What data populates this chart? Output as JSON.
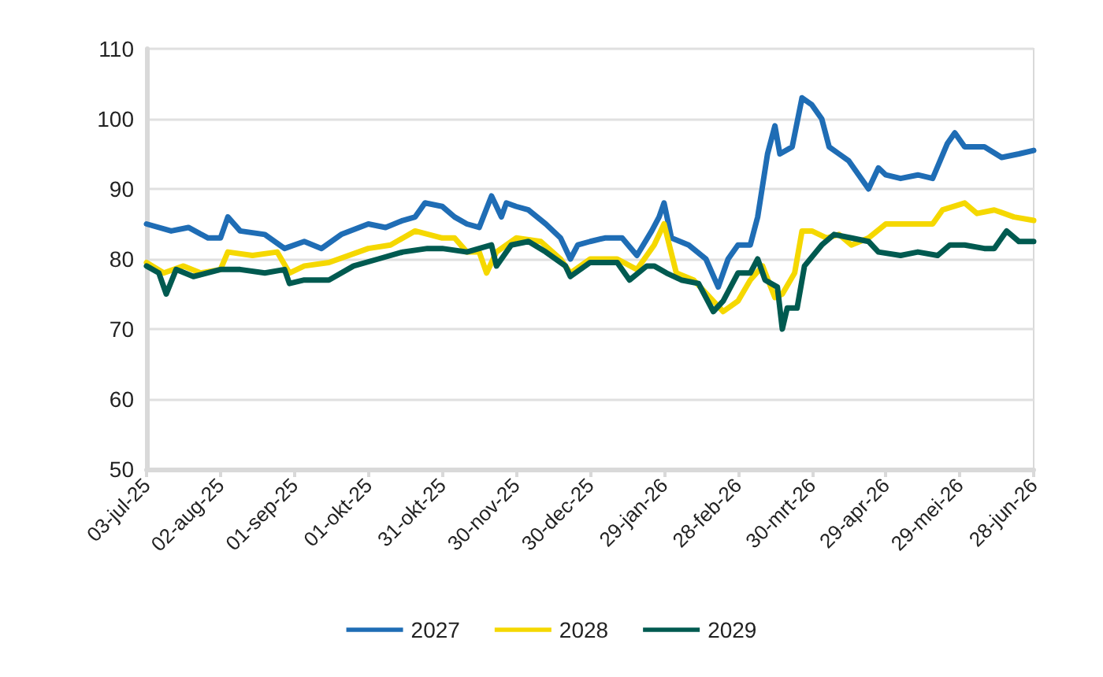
{
  "chart_data": {
    "type": "line",
    "xlim": [
      "2025-07-03",
      "2026-06-28"
    ],
    "xticks": [
      {
        "value": "2025-07-03",
        "label": "03-jul-25"
      },
      {
        "value": "2025-08-02",
        "label": "02-aug-25"
      },
      {
        "value": "2025-09-01",
        "label": "01-sep-25"
      },
      {
        "value": "2025-10-01",
        "label": "01-okt-25"
      },
      {
        "value": "2025-10-31",
        "label": "31-okt-25"
      },
      {
        "value": "2025-11-30",
        "label": "30-nov-25"
      },
      {
        "value": "2025-12-30",
        "label": "30-dec-25"
      },
      {
        "value": "2026-01-29",
        "label": "29-jan-26"
      },
      {
        "value": "2026-02-28",
        "label": "28-feb-26"
      },
      {
        "value": "2026-03-30",
        "label": "30-mrt-26"
      },
      {
        "value": "2026-04-29",
        "label": "29-apr-26"
      },
      {
        "value": "2026-05-29",
        "label": "29-mei-26"
      },
      {
        "value": "2026-06-28",
        "label": "28-jun-26"
      }
    ],
    "ylim": [
      50,
      110
    ],
    "yticks": [
      50,
      60,
      70,
      80,
      90,
      100,
      110
    ],
    "grid": "y",
    "legend": "bottom",
    "marker": "none",
    "line_style": "solid",
    "series": [
      {
        "name": "2027",
        "color": "#1f6db5",
        "x": [
          "2025-07-03",
          "2025-07-13",
          "2025-07-20",
          "2025-07-28",
          "2025-08-02",
          "2025-08-05",
          "2025-08-10",
          "2025-08-20",
          "2025-08-28",
          "2025-09-05",
          "2025-09-12",
          "2025-09-20",
          "2025-10-01",
          "2025-10-08",
          "2025-10-15",
          "2025-10-20",
          "2025-10-24",
          "2025-10-31",
          "2025-11-05",
          "2025-11-10",
          "2025-11-15",
          "2025-11-20",
          "2025-11-24",
          "2025-11-26",
          "2025-11-30",
          "2025-12-05",
          "2025-12-12",
          "2025-12-18",
          "2025-12-22",
          "2025-12-25",
          "2025-12-30",
          "2026-01-05",
          "2026-01-12",
          "2026-01-18",
          "2026-01-24",
          "2026-01-27",
          "2026-01-29",
          "2026-02-01",
          "2026-02-08",
          "2026-02-15",
          "2026-02-20",
          "2026-02-24",
          "2026-02-28",
          "2026-03-05",
          "2026-03-08",
          "2026-03-12",
          "2026-03-15",
          "2026-03-17",
          "2026-03-22",
          "2026-03-26",
          "2026-03-30",
          "2026-04-03",
          "2026-04-06",
          "2026-04-10",
          "2026-04-14",
          "2026-04-18",
          "2026-04-22",
          "2026-04-26",
          "2026-04-29",
          "2026-05-05",
          "2026-05-12",
          "2026-05-18",
          "2026-05-24",
          "2026-05-27",
          "2026-05-31",
          "2026-06-08",
          "2026-06-15",
          "2026-06-22",
          "2026-06-28"
        ],
        "values": [
          85,
          84,
          84.5,
          83,
          83,
          86,
          84,
          83.5,
          81.5,
          82.5,
          81.5,
          83.5,
          85,
          84.5,
          85.5,
          86,
          88,
          87.5,
          86,
          85,
          84.5,
          89,
          86,
          88,
          87.5,
          87,
          85,
          83,
          80,
          82,
          82.5,
          83,
          83,
          80.5,
          84,
          86,
          88,
          83,
          82,
          80,
          76,
          80,
          82,
          82,
          86,
          95,
          99,
          95,
          96,
          103,
          102,
          100,
          96,
          95,
          94,
          92,
          90,
          93,
          92,
          91.5,
          92,
          91.5,
          96.5,
          98,
          96,
          96,
          94.5,
          95,
          95.5
        ]
      },
      {
        "name": "2028",
        "color": "#f5d800",
        "x": [
          "2025-07-03",
          "2025-07-10",
          "2025-07-18",
          "2025-07-25",
          "2025-08-02",
          "2025-08-05",
          "2025-08-15",
          "2025-08-25",
          "2025-08-30",
          "2025-09-05",
          "2025-09-15",
          "2025-10-01",
          "2025-10-10",
          "2025-10-20",
          "2025-10-31",
          "2025-11-05",
          "2025-11-10",
          "2025-11-15",
          "2025-11-18",
          "2025-11-22",
          "2025-11-30",
          "2025-12-10",
          "2025-12-18",
          "2025-12-22",
          "2025-12-30",
          "2026-01-10",
          "2026-01-18",
          "2026-01-25",
          "2026-01-29",
          "2026-02-03",
          "2026-02-10",
          "2026-02-18",
          "2026-02-22",
          "2026-02-28",
          "2026-03-05",
          "2026-03-10",
          "2026-03-15",
          "2026-03-18",
          "2026-03-23",
          "2026-03-26",
          "2026-03-30",
          "2026-04-05",
          "2026-04-10",
          "2026-04-15",
          "2026-04-22",
          "2026-04-29",
          "2026-05-10",
          "2026-05-18",
          "2026-05-22",
          "2026-05-31",
          "2026-06-05",
          "2026-06-12",
          "2026-06-20",
          "2026-06-28"
        ],
        "values": [
          79.5,
          78,
          79,
          78,
          78.5,
          81,
          80.5,
          81,
          78,
          79,
          79.5,
          81.5,
          82,
          84,
          83,
          83,
          81,
          81,
          78,
          81,
          83,
          82.5,
          80,
          78,
          80,
          80,
          78.5,
          82,
          85,
          78,
          77,
          74,
          72.5,
          74,
          77,
          79,
          74.5,
          75,
          78,
          84,
          84,
          83,
          83.5,
          82,
          83,
          85,
          85,
          85,
          87,
          88,
          86.5,
          87,
          86,
          85.5
        ]
      },
      {
        "name": "2029",
        "color": "#005a50",
        "x": [
          "2025-07-03",
          "2025-07-08",
          "2025-07-11",
          "2025-07-15",
          "2025-07-22",
          "2025-08-02",
          "2025-08-10",
          "2025-08-20",
          "2025-08-28",
          "2025-08-30",
          "2025-09-05",
          "2025-09-15",
          "2025-09-25",
          "2025-10-05",
          "2025-10-15",
          "2025-10-25",
          "2025-10-31",
          "2025-11-10",
          "2025-11-20",
          "2025-11-22",
          "2025-11-28",
          "2025-12-05",
          "2025-12-12",
          "2025-12-20",
          "2025-12-22",
          "2025-12-30",
          "2026-01-10",
          "2026-01-15",
          "2026-01-22",
          "2026-01-25",
          "2026-01-30",
          "2026-02-05",
          "2026-02-12",
          "2026-02-18",
          "2026-02-22",
          "2026-02-28",
          "2026-03-05",
          "2026-03-08",
          "2026-03-11",
          "2026-03-16",
          "2026-03-18",
          "2026-03-20",
          "2026-03-24",
          "2026-03-27",
          "2026-04-03",
          "2026-04-08",
          "2026-04-15",
          "2026-04-22",
          "2026-04-26",
          "2026-05-05",
          "2026-05-12",
          "2026-05-20",
          "2026-05-25",
          "2026-05-31",
          "2026-06-08",
          "2026-06-12",
          "2026-06-17",
          "2026-06-22",
          "2026-06-28"
        ],
        "values": [
          79,
          78,
          75,
          78.5,
          77.5,
          78.5,
          78.5,
          78,
          78.5,
          76.5,
          77,
          77,
          79,
          80,
          81,
          81.5,
          81.5,
          81,
          82,
          79,
          82,
          82.5,
          81,
          79,
          77.5,
          79.5,
          79.5,
          77,
          79,
          79,
          78,
          77,
          76.5,
          72.5,
          74,
          78,
          78,
          80,
          77,
          76,
          70,
          73,
          73,
          79,
          82,
          83.5,
          83,
          82.5,
          81,
          80.5,
          81,
          80.5,
          82,
          82,
          81.5,
          81.5,
          84,
          82.5,
          82.5
        ]
      }
    ]
  }
}
